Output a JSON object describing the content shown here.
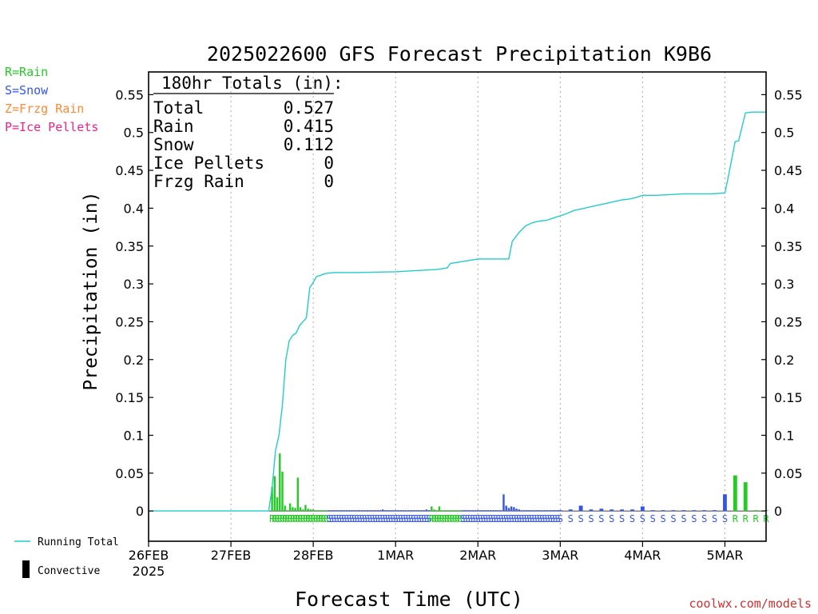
{
  "chart_data": {
    "type": "bar",
    "title": "2025022600 GFS Forecast Precipitation K9B6",
    "xlabel": "Forecast Time (UTC)",
    "ylabel": "Precipitation (in)",
    "ylim": [
      -0.04,
      0.58
    ],
    "xlim_hours": [
      0,
      180
    ],
    "yticks": [
      "0",
      "0.05",
      "0.1",
      "0.15",
      "0.2",
      "0.25",
      "0.3",
      "0.35",
      "0.4",
      "0.45",
      "0.5",
      "0.55"
    ],
    "ytick_values": [
      0,
      0.05,
      0.1,
      0.15,
      0.2,
      0.25,
      0.3,
      0.35,
      0.4,
      0.45,
      0.5,
      0.55
    ],
    "xticks": [
      {
        "hour": 0,
        "label": "26FEB",
        "sublabel": "2025"
      },
      {
        "hour": 24,
        "label": "27FEB"
      },
      {
        "hour": 48,
        "label": "28FEB"
      },
      {
        "hour": 72,
        "label": "1MAR"
      },
      {
        "hour": 96,
        "label": "2MAR"
      },
      {
        "hour": 120,
        "label": "3MAR"
      },
      {
        "hour": 144,
        "label": "4MAR"
      },
      {
        "hour": 168,
        "label": "5MAR"
      }
    ],
    "grid": "dotted vertical at day boundaries",
    "legend_type_keys": [
      {
        "label": "R=Rain",
        "color": "#22cc22"
      },
      {
        "label": "S=Snow",
        "color": "#3355ee"
      },
      {
        "label": "Z=Frzg Rain",
        "color": "#ff8833"
      },
      {
        "label": "P=Ice Pellets",
        "color": "#ee2288"
      }
    ],
    "legend_series": [
      {
        "label": "Running Total",
        "color": "#22cccc"
      },
      {
        "label": "Convective",
        "color": "#000000"
      }
    ],
    "totals": {
      "header": "180hr Totals (in):",
      "rows": [
        {
          "label": "Total",
          "value": "0.527"
        },
        {
          "label": "Rain",
          "value": "0.415"
        },
        {
          "label": "Snow",
          "value": "0.112"
        },
        {
          "label": "Ice Pellets",
          "value": "0"
        },
        {
          "label": "Frzg Rain",
          "value": "0"
        }
      ]
    },
    "series": [
      {
        "type": "bar",
        "x_hours": [
          36,
          36.75,
          37.5,
          38.25,
          39,
          39.75,
          40.5,
          41.25,
          42,
          42.75,
          43.5,
          44.25,
          45,
          45.75,
          46.5,
          47.25,
          48,
          48.75,
          49.5,
          50.25,
          51,
          51.75,
          52.5,
          53.25,
          54,
          54.75,
          55.5,
          56.25,
          57,
          57.75,
          58.5,
          59.25,
          60,
          60.75,
          61.5,
          62.25,
          63,
          63.75,
          64.5,
          65.25,
          66,
          66.75,
          67.5,
          68.25,
          69,
          69.75,
          70.5,
          71.25,
          72,
          72.75,
          73.5,
          74.25,
          75,
          75.75,
          76.5,
          77.25,
          78,
          78.75,
          79.5,
          80.25,
          81,
          81.75,
          82.5,
          83.25,
          84,
          84.75,
          85.5,
          86.25,
          87,
          87.75,
          88.5,
          89.25,
          90,
          90.75,
          91.5,
          92.25,
          93,
          93.75,
          94.5,
          95.25,
          96,
          96.75,
          97.5,
          98.25,
          99,
          99.75,
          100.5,
          101.25,
          102,
          102.75,
          103.5,
          104.25,
          105,
          105.75,
          106.5,
          107.25,
          108,
          108.75,
          109.5,
          110.25,
          111,
          111.75,
          112.5,
          113.25,
          114,
          114.75,
          115.5,
          116.25,
          117,
          117.75,
          118.5,
          119.25,
          120,
          123,
          126,
          129,
          132,
          135,
          138,
          141,
          144,
          147,
          150,
          153,
          156,
          159,
          162,
          165,
          168,
          171,
          174,
          177,
          180
        ],
        "values": [
          0.032,
          0.046,
          0.018,
          0.076,
          0.052,
          0.007,
          0.001,
          0.01,
          0.005,
          0.004,
          0.044,
          0.005,
          0.002,
          0.008,
          0.003,
          0.002,
          0.002,
          0.001,
          0.001,
          0.001,
          0.001,
          0.001,
          0.001,
          0.001,
          0.001,
          0.001,
          0.001,
          0.001,
          0.001,
          0.001,
          0.001,
          0.001,
          0.001,
          0.001,
          0.001,
          0.001,
          0.001,
          0.001,
          0.001,
          0.001,
          0.001,
          0.001,
          0.001,
          0.002,
          0.001,
          0.001,
          0.001,
          0.001,
          0.001,
          0.001,
          0.001,
          0.001,
          0.001,
          0.001,
          0.001,
          0.001,
          0.001,
          0.001,
          0.001,
          0.001,
          0.002,
          0.001,
          0.006,
          0.002,
          0.001,
          0.006,
          0.001,
          0.001,
          0.001,
          0.001,
          0.001,
          0.001,
          0.001,
          0.001,
          0.001,
          0.001,
          0.001,
          0.001,
          0.001,
          0.001,
          0.001,
          0.001,
          0.001,
          0.001,
          0.001,
          0.001,
          0.001,
          0.001,
          0.001,
          0.001,
          0.022,
          0.007,
          0.004,
          0.006,
          0.005,
          0.003,
          0.002,
          0.001,
          0.001,
          0.001,
          0.001,
          0.001,
          0.001,
          0.001,
          0.001,
          0.001,
          0.001,
          0.001,
          0.001,
          0.001,
          0.001,
          0.001,
          0.001,
          0.002,
          0.007,
          0.002,
          0.003,
          0.002,
          0.002,
          0.002,
          0.006,
          0.001,
          0.001,
          0.001,
          0.001,
          0.001,
          0.001,
          0.001,
          0.022,
          0.047,
          0.038,
          0.001,
          0.001
        ],
        "ptype": [
          "R",
          "R",
          "R",
          "R",
          "R",
          "R",
          "R",
          "R",
          "R",
          "R",
          "R",
          "R",
          "R",
          "R",
          "R",
          "R",
          "R",
          "R",
          "R",
          "R",
          "R",
          "R",
          "S",
          "S",
          "S",
          "S",
          "S",
          "S",
          "S",
          "S",
          "S",
          "S",
          "S",
          "S",
          "S",
          "S",
          "S",
          "S",
          "S",
          "S",
          "S",
          "S",
          "S",
          "S",
          "S",
          "S",
          "S",
          "S",
          "S",
          "S",
          "S",
          "S",
          "S",
          "S",
          "S",
          "S",
          "S",
          "S",
          "S",
          "S",
          "S",
          "S",
          "R",
          "R",
          "R",
          "R",
          "R",
          "R",
          "R",
          "R",
          "R",
          "R",
          "R",
          "R",
          "S",
          "S",
          "S",
          "S",
          "S",
          "S",
          "S",
          "S",
          "S",
          "S",
          "S",
          "S",
          "S",
          "S",
          "S",
          "S",
          "S",
          "S",
          "S",
          "S",
          "S",
          "S",
          "S",
          "S",
          "S",
          "S",
          "S",
          "S",
          "S",
          "S",
          "S",
          "S",
          "S",
          "S",
          "S",
          "S",
          "S",
          "S",
          "S",
          "S",
          "S",
          "S",
          "S",
          "S",
          "S",
          "S",
          "S",
          "S",
          "S",
          "S",
          "S",
          "S",
          "S",
          "S",
          "S",
          "R",
          "R",
          "R",
          "R"
        ]
      },
      {
        "name": "Running Total",
        "type": "line",
        "x_hours": [
          0,
          35,
          36,
          37,
          38,
          39,
          40,
          41,
          42,
          43,
          44,
          45,
          46,
          47,
          48,
          49,
          50,
          51,
          52,
          54,
          60,
          72,
          84,
          87,
          88,
          96,
          105,
          106,
          108,
          110,
          112,
          114,
          116,
          118,
          120,
          122,
          124,
          126,
          128,
          130,
          132,
          134,
          136,
          138,
          140,
          142,
          144,
          148,
          152,
          156,
          160,
          164,
          168,
          169,
          171,
          172,
          174,
          176,
          180
        ],
        "values": [
          0,
          0,
          0.03,
          0.08,
          0.1,
          0.14,
          0.2,
          0.225,
          0.232,
          0.235,
          0.245,
          0.25,
          0.255,
          0.295,
          0.302,
          0.31,
          0.311,
          0.313,
          0.314,
          0.315,
          0.315,
          0.316,
          0.319,
          0.321,
          0.327,
          0.333,
          0.333,
          0.356,
          0.368,
          0.377,
          0.381,
          0.383,
          0.384,
          0.387,
          0.39,
          0.393,
          0.397,
          0.399,
          0.401,
          0.403,
          0.405,
          0.407,
          0.409,
          0.411,
          0.412,
          0.414,
          0.417,
          0.417,
          0.418,
          0.419,
          0.419,
          0.419,
          0.42,
          0.442,
          0.488,
          0.489,
          0.526,
          0.527,
          0.527
        ]
      }
    ]
  },
  "watermark": "coolwx.com/models",
  "colors": {
    "rain": "#22cc22",
    "snow": "#3355ee",
    "frzg_rain": "#ff8833",
    "ice_pellets": "#ee2288",
    "running_total": "#22cccc",
    "convective": "#000000",
    "grid": "#aaaaaa",
    "watermark": "#d03030"
  }
}
